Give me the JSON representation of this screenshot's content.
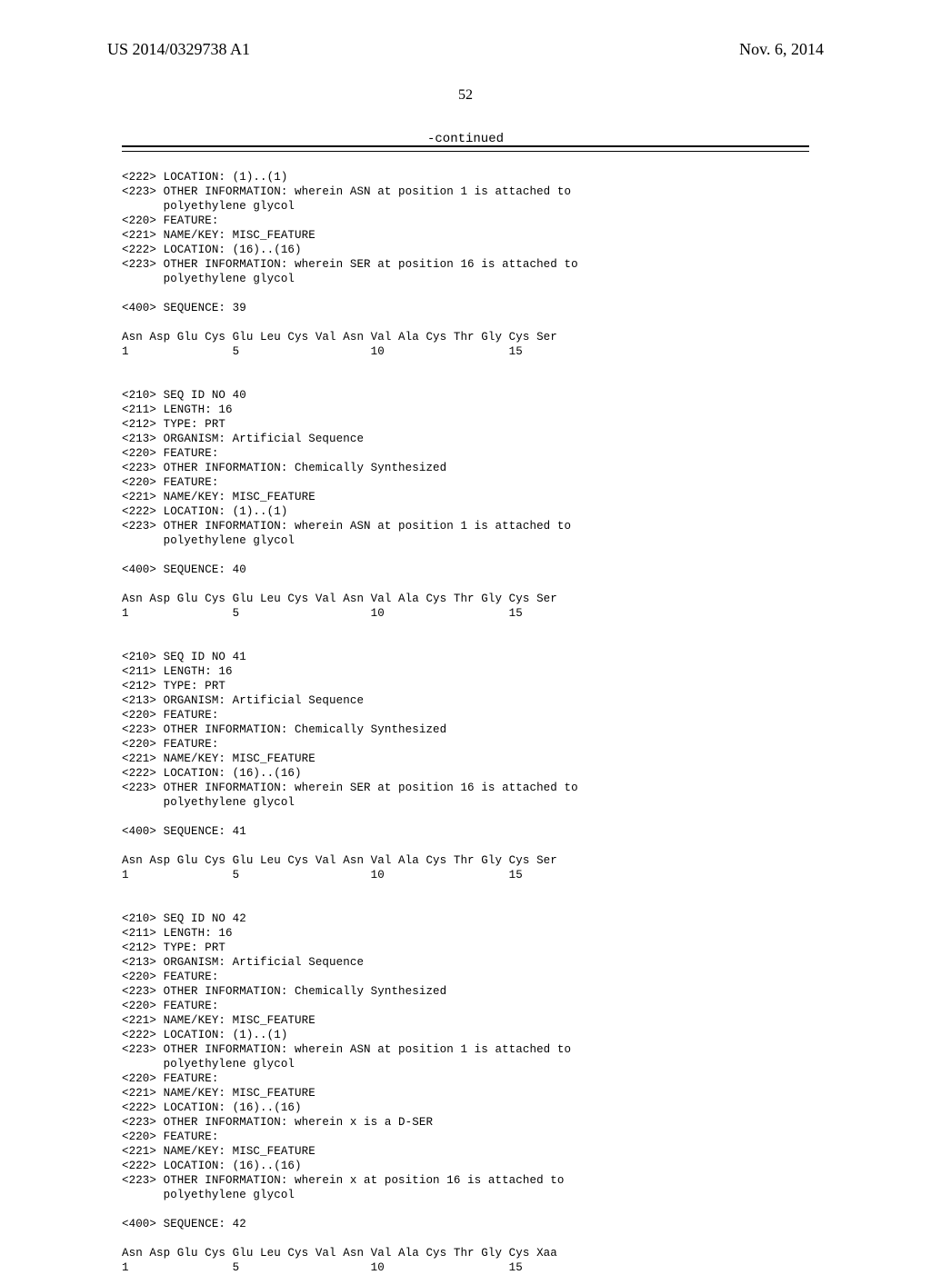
{
  "header": {
    "publication_number": "US 2014/0329738 A1",
    "publication_date": "Nov. 6, 2014",
    "page_number": "52",
    "continued_label": "-continued"
  },
  "listing_text": "<222> LOCATION: (1)..(1)\n<223> OTHER INFORMATION: wherein ASN at position 1 is attached to\n      polyethylene glycol\n<220> FEATURE:\n<221> NAME/KEY: MISC_FEATURE\n<222> LOCATION: (16)..(16)\n<223> OTHER INFORMATION: wherein SER at position 16 is attached to\n      polyethylene glycol\n\n<400> SEQUENCE: 39\n\nAsn Asp Glu Cys Glu Leu Cys Val Asn Val Ala Cys Thr Gly Cys Ser\n1               5                   10                  15\n\n\n<210> SEQ ID NO 40\n<211> LENGTH: 16\n<212> TYPE: PRT\n<213> ORGANISM: Artificial Sequence\n<220> FEATURE:\n<223> OTHER INFORMATION: Chemically Synthesized\n<220> FEATURE:\n<221> NAME/KEY: MISC_FEATURE\n<222> LOCATION: (1)..(1)\n<223> OTHER INFORMATION: wherein ASN at position 1 is attached to\n      polyethylene glycol\n\n<400> SEQUENCE: 40\n\nAsn Asp Glu Cys Glu Leu Cys Val Asn Val Ala Cys Thr Gly Cys Ser\n1               5                   10                  15\n\n\n<210> SEQ ID NO 41\n<211> LENGTH: 16\n<212> TYPE: PRT\n<213> ORGANISM: Artificial Sequence\n<220> FEATURE:\n<223> OTHER INFORMATION: Chemically Synthesized\n<220> FEATURE:\n<221> NAME/KEY: MISC_FEATURE\n<222> LOCATION: (16)..(16)\n<223> OTHER INFORMATION: wherein SER at position 16 is attached to\n      polyethylene glycol\n\n<400> SEQUENCE: 41\n\nAsn Asp Glu Cys Glu Leu Cys Val Asn Val Ala Cys Thr Gly Cys Ser\n1               5                   10                  15\n\n\n<210> SEQ ID NO 42\n<211> LENGTH: 16\n<212> TYPE: PRT\n<213> ORGANISM: Artificial Sequence\n<220> FEATURE:\n<223> OTHER INFORMATION: Chemically Synthesized\n<220> FEATURE:\n<221> NAME/KEY: MISC_FEATURE\n<222> LOCATION: (1)..(1)\n<223> OTHER INFORMATION: wherein ASN at position 1 is attached to\n      polyethylene glycol\n<220> FEATURE:\n<221> NAME/KEY: MISC_FEATURE\n<222> LOCATION: (16)..(16)\n<223> OTHER INFORMATION: wherein x is a D-SER\n<220> FEATURE:\n<221> NAME/KEY: MISC_FEATURE\n<222> LOCATION: (16)..(16)\n<223> OTHER INFORMATION: wherein x at position 16 is attached to\n      polyethylene glycol\n\n<400> SEQUENCE: 42\n\nAsn Asp Glu Cys Glu Leu Cys Val Asn Val Ala Cys Thr Gly Cys Xaa\n1               5                   10                  15"
}
